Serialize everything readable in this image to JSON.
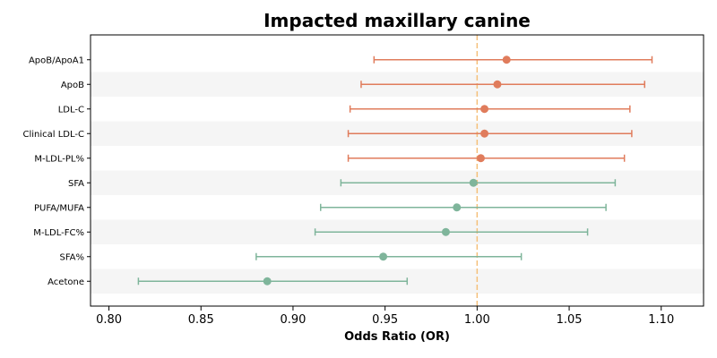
{
  "chart_data": {
    "type": "forest",
    "title": "Impacted maxillary canine",
    "xlabel": "Odds Ratio (OR)",
    "ylabel": "",
    "xlim": [
      0.79,
      1.123
    ],
    "x_ticks": [
      0.8,
      0.85,
      0.9,
      0.95,
      1.0,
      1.05,
      1.1
    ],
    "x_tick_labels": [
      "0.80",
      "0.85",
      "0.90",
      "0.95",
      "1.00",
      "1.05",
      "1.10"
    ],
    "reference_line": 1.0,
    "reference_color": "#f5c07a",
    "colors": {
      "positive": "#e07c5c",
      "negative": "#7fb59b",
      "stripe": "#f5f5f5"
    },
    "grid": false,
    "rows": [
      {
        "label": "ApoB/ApoA1",
        "or": 1.016,
        "lower": 0.944,
        "upper": 1.095,
        "direction": "positive"
      },
      {
        "label": "ApoB",
        "or": 1.011,
        "lower": 0.937,
        "upper": 1.091,
        "direction": "positive"
      },
      {
        "label": "LDL-C",
        "or": 1.004,
        "lower": 0.931,
        "upper": 1.083,
        "direction": "positive"
      },
      {
        "label": "Clinical LDL-C",
        "or": 1.004,
        "lower": 0.93,
        "upper": 1.084,
        "direction": "positive"
      },
      {
        "label": "M-LDL-PL%",
        "or": 1.002,
        "lower": 0.93,
        "upper": 1.08,
        "direction": "positive"
      },
      {
        "label": "SFA",
        "or": 0.998,
        "lower": 0.926,
        "upper": 1.075,
        "direction": "negative"
      },
      {
        "label": "PUFA/MUFA",
        "or": 0.989,
        "lower": 0.915,
        "upper": 1.07,
        "direction": "negative"
      },
      {
        "label": "M-LDL-FC%",
        "or": 0.983,
        "lower": 0.912,
        "upper": 1.06,
        "direction": "negative"
      },
      {
        "label": "SFA%",
        "or": 0.949,
        "lower": 0.88,
        "upper": 1.024,
        "direction": "negative"
      },
      {
        "label": "Acetone",
        "or": 0.886,
        "lower": 0.816,
        "upper": 0.962,
        "direction": "negative"
      }
    ]
  }
}
